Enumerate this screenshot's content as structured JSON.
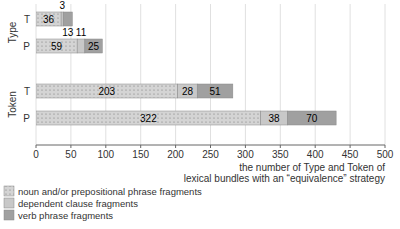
{
  "chart_data": {
    "type": "bar",
    "orientation": "horizontal",
    "stacked": true,
    "data_labels": true,
    "grid": true,
    "legend": "bottom",
    "categories": [
      "T",
      "P",
      "T",
      "P"
    ],
    "groups": [
      "Type",
      "Token"
    ],
    "series": [
      {
        "name": "noun and/or prepositional phrase fragments",
        "color": "#d4d4d4",
        "values": [
          36,
          59,
          203,
          322
        ]
      },
      {
        "name": "dependent clause fragments",
        "color": "#c8c8c8",
        "values": [
          3,
          11,
          28,
          38
        ]
      },
      {
        "name": "verb phrase fragments",
        "color": "#a0a0a0",
        "values": [
          13,
          25,
          51,
          70
        ]
      }
    ],
    "xlabel": "the number of Type and Token of\nlexical bundles with an “equivalence” strategy",
    "xlim": [
      0,
      500
    ],
    "xticks": [
      0,
      50,
      100,
      150,
      200,
      250,
      300,
      350,
      400,
      450,
      500
    ]
  }
}
